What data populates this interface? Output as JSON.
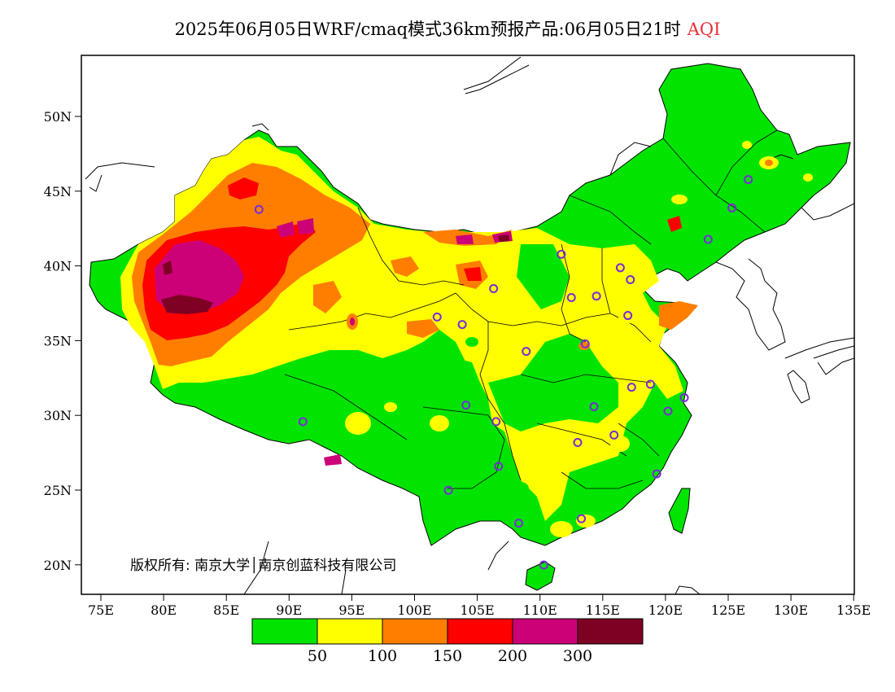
{
  "title": {
    "main": "2025年06月05日WRF/cmaq模式36km预报产品:06月05日21时",
    "variable": "AQI"
  },
  "copyright": "版权所有: 南京大学│南京创蓝科技有限公司",
  "axes": {
    "x_ticks": [
      "75E",
      "80E",
      "85E",
      "90E",
      "95E",
      "100E",
      "105E",
      "110E",
      "115E",
      "120E",
      "125E",
      "130E",
      "135E"
    ],
    "y_ticks": [
      "50N",
      "45N",
      "40N",
      "35N",
      "30N",
      "25N",
      "20N"
    ]
  },
  "legend": {
    "colors": [
      "#00e400",
      "#ffff00",
      "#ff7e00",
      "#ff0000",
      "#cc0077",
      "#7e0023"
    ],
    "labels": [
      "50",
      "100",
      "150",
      "200",
      "300"
    ]
  },
  "stations": [
    [
      87.6,
      43.8
    ],
    [
      91.1,
      29.6
    ],
    [
      101.8,
      36.6
    ],
    [
      103.8,
      36.1
    ],
    [
      106.3,
      38.5
    ],
    [
      111.7,
      40.8
    ],
    [
      114.5,
      38.0
    ],
    [
      112.5,
      37.9
    ],
    [
      116.4,
      39.9
    ],
    [
      117.2,
      39.1
    ],
    [
      123.4,
      41.8
    ],
    [
      125.3,
      43.9
    ],
    [
      126.6,
      45.8
    ],
    [
      117.0,
      36.7
    ],
    [
      113.6,
      34.8
    ],
    [
      108.9,
      34.3
    ],
    [
      104.1,
      30.7
    ],
    [
      106.5,
      29.6
    ],
    [
      106.7,
      26.6
    ],
    [
      102.7,
      25.0
    ],
    [
      108.3,
      22.8
    ],
    [
      113.3,
      23.1
    ],
    [
      110.3,
      20.0
    ],
    [
      119.3,
      26.1
    ],
    [
      115.9,
      28.7
    ],
    [
      113.0,
      28.2
    ],
    [
      114.3,
      30.6
    ],
    [
      117.3,
      31.9
    ],
    [
      118.8,
      32.1
    ],
    [
      120.2,
      30.3
    ],
    [
      121.5,
      31.2
    ]
  ]
}
